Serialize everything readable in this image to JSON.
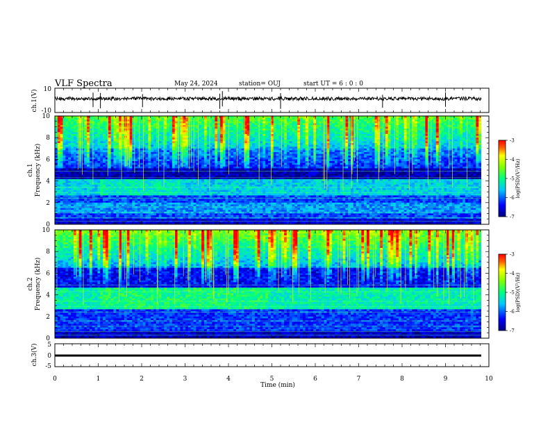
{
  "header": {
    "title": "VLF Spectra",
    "date": "May 24, 2024",
    "station": "station= OUJ",
    "start": "start  UT  =   6  : 0   : 0"
  },
  "chart_data": [
    {
      "id": "ch1-waveform",
      "type": "line",
      "ylabel": "ch.1(V)",
      "ylim": [
        -10,
        10
      ],
      "yticks": [
        "10",
        "-10"
      ],
      "xlim": [
        0,
        10
      ],
      "series": [
        {
          "values_note": "",
          "baseline": 0,
          "amplitude": 0.6,
          "spikes_min": [
            0.88,
            1.05,
            2.02,
            3.8,
            3.86,
            5.2,
            7.55,
            9.0
          ]
        }
      ]
    },
    {
      "id": "ch1-spectrogram",
      "type": "heatmap",
      "ylabel_line1": "ch.1",
      "ylabel_line2": "Frequency (kHz)",
      "ylim": [
        0,
        10
      ],
      "yticks": [
        "0",
        "2",
        "4",
        "6",
        "8",
        "10"
      ],
      "xlim": [
        0,
        9.8
      ],
      "colorbar": {
        "label": "log(PSD)(V²/Hz)",
        "range": [
          -7,
          -3
        ],
        "ticks": [
          "-3",
          "-4",
          "-5",
          "-6",
          "-7"
        ]
      }
    },
    {
      "id": "ch2-spectrogram",
      "type": "heatmap",
      "ylabel_line1": "ch.2",
      "ylabel_line2": "Frequency (kHz)",
      "ylim": [
        0,
        10
      ],
      "yticks": [
        "0",
        "2",
        "4",
        "6",
        "8",
        "10"
      ],
      "xlim": [
        0,
        9.8
      ],
      "colorbar": {
        "label": "log(PSD)(V²/Hz)",
        "range": [
          -7,
          -3
        ],
        "ticks": [
          "-3",
          "-4",
          "-5",
          "-6",
          "-7"
        ]
      }
    },
    {
      "id": "ch3-waveform",
      "type": "line",
      "ylabel": "ch.3(V)",
      "ylim": [
        -5,
        5
      ],
      "yticks": [
        "5",
        "0",
        "-5"
      ],
      "xlim": [
        0,
        10
      ],
      "series": [
        {
          "baseline": -0.5
        }
      ]
    }
  ],
  "xaxis": {
    "label": "Time (min)",
    "ticks": [
      "0",
      "1",
      "2",
      "3",
      "4",
      "5",
      "6",
      "7",
      "8",
      "9",
      "10"
    ]
  }
}
